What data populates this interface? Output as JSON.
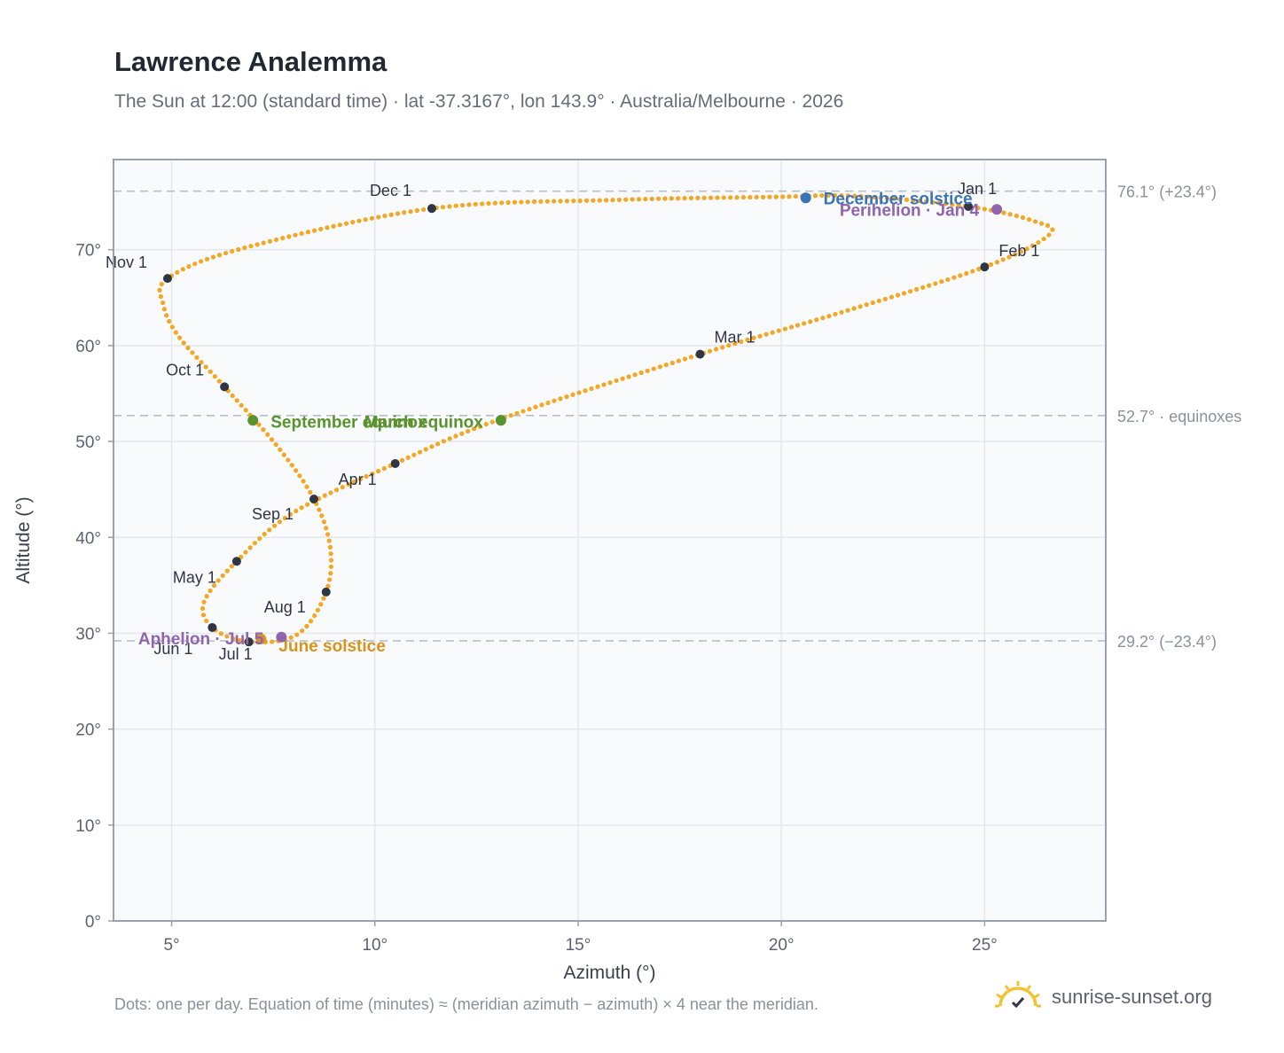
{
  "title": "Lawrence Analemma",
  "subtitle": "The Sun at 12:00 (standard time) · lat -37.3167°, lon 143.9° · Australia/Melbourne · 2026",
  "footnote": "Dots: one per day. Equation of time (minutes) ≈ (meridian azimuth − azimuth) × 4 near the meridian.",
  "brand": {
    "name": "sunrise-sunset.org",
    "icon": "sun-check-icon"
  },
  "colors": {
    "path": "#f5a623",
    "month_marker": "#2f3542",
    "solstice_december": "#3a74b8",
    "solstice_june": "#d9941c",
    "equinox": "#5a922e",
    "perihelion_aphelion": "#8f65b0",
    "reference_line": "#b7c0ca",
    "plot_bg": "#f8fafc",
    "grid": "#e3e8ee",
    "axis_frame": "#98a2ae"
  },
  "chart_data": {
    "type": "scatter",
    "xlabel": "Azimuth (°)",
    "ylabel": "Altitude (°)",
    "xlim": [
      3.57,
      27.98
    ],
    "ylim": [
      0,
      79.4
    ],
    "x_ticks": [
      5,
      10,
      15,
      20,
      25
    ],
    "x_tick_labels": [
      "5°",
      "10°",
      "15°",
      "20°",
      "25°"
    ],
    "y_ticks": [
      0,
      10,
      20,
      30,
      40,
      50,
      60,
      70
    ],
    "y_tick_labels": [
      "0°",
      "10°",
      "20°",
      "30°",
      "40°",
      "50°",
      "60°",
      "70°"
    ],
    "grid": true,
    "reference_lines": [
      {
        "altitude": 76.1,
        "label": "76.1° (+23.4°)"
      },
      {
        "altitude": 52.7,
        "label": "52.7° · equinoxes"
      },
      {
        "altitude": 29.2,
        "label": "29.2° (−23.4°)"
      }
    ],
    "month_markers": [
      {
        "label": "Jan 1",
        "az": 24.6,
        "alt": 74.5
      },
      {
        "label": "Feb 1",
        "az": 25.0,
        "alt": 68.2
      },
      {
        "label": "Mar 1",
        "az": 18.0,
        "alt": 59.1
      },
      {
        "label": "Apr 1",
        "az": 10.5,
        "alt": 47.7
      },
      {
        "label": "May 1",
        "az": 6.6,
        "alt": 37.5
      },
      {
        "label": "Jun 1",
        "az": 6.0,
        "alt": 30.6
      },
      {
        "label": "Jul 1",
        "az": 6.9,
        "alt": 29.1
      },
      {
        "label": "Aug 1",
        "az": 8.8,
        "alt": 34.3
      },
      {
        "label": "Sep 1",
        "az": 8.5,
        "alt": 44.0
      },
      {
        "label": "Oct 1",
        "az": 6.3,
        "alt": 55.7
      },
      {
        "label": "Nov 1",
        "az": 4.9,
        "alt": 67.0
      },
      {
        "label": "Dec 1",
        "az": 11.4,
        "alt": 74.3
      }
    ],
    "events": [
      {
        "label": "December solstice",
        "az": 20.6,
        "alt": 75.4,
        "kind": "solstice_december"
      },
      {
        "label": "Perihelion · Jan 4",
        "az": 25.3,
        "alt": 74.2,
        "kind": "perihelion_aphelion"
      },
      {
        "label": "March equinox",
        "az": 13.1,
        "alt": 52.2,
        "kind": "equinox"
      },
      {
        "label": "September equinox",
        "az": 7.0,
        "alt": 52.2,
        "kind": "equinox"
      },
      {
        "label": "June solstice",
        "az": 7.2,
        "alt": 29.4,
        "kind": "solstice_june"
      },
      {
        "label": "Aphelion · Jul 5",
        "az": 7.7,
        "alt": 29.6,
        "kind": "perihelion_aphelion"
      }
    ],
    "daily_path": {
      "description_free_note": "",
      "knots": [
        [
          21.8,
          75.6
        ],
        [
          24.6,
          74.5
        ],
        [
          26.2,
          73.0
        ],
        [
          26.6,
          71.6
        ],
        [
          25.0,
          68.2
        ],
        [
          21.5,
          63.5
        ],
        [
          18.0,
          59.1
        ],
        [
          13.0,
          52.2
        ],
        [
          10.5,
          47.7
        ],
        [
          8.0,
          42.6
        ],
        [
          6.6,
          37.5
        ],
        [
          5.8,
          33.3
        ],
        [
          6.0,
          30.6
        ],
        [
          6.9,
          29.1
        ],
        [
          8.1,
          29.9
        ],
        [
          8.8,
          34.3
        ],
        [
          8.9,
          39.0
        ],
        [
          8.5,
          44.0
        ],
        [
          7.6,
          49.5
        ],
        [
          6.3,
          55.7
        ],
        [
          5.2,
          60.8
        ],
        [
          4.8,
          64.2
        ],
        [
          4.9,
          67.0
        ],
        [
          6.8,
          70.2
        ],
        [
          11.4,
          74.3
        ],
        [
          16.0,
          75.2
        ],
        [
          19.8,
          75.5
        ],
        [
          21.8,
          75.6
        ]
      ]
    }
  }
}
